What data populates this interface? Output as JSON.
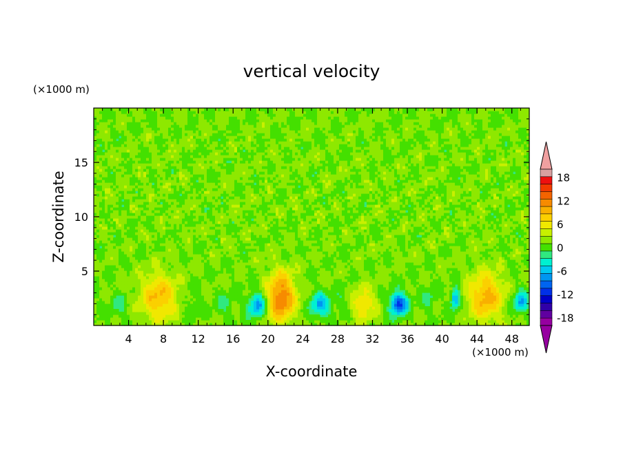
{
  "chart_data": {
    "type": "heatmap",
    "title": "vertical velocity",
    "xlabel": "X-coordinate",
    "ylabel": "Z-coordinate",
    "x_unit_label": "(×1000 m)",
    "y_unit_label": "(×1000 m)",
    "xlim": [
      0,
      50
    ],
    "ylim": [
      0,
      20
    ],
    "x_ticks": [
      "4",
      "8",
      "12",
      "16",
      "20",
      "24",
      "28",
      "32",
      "36",
      "40",
      "44",
      "48"
    ],
    "y_ticks": [
      "5",
      "10",
      "15"
    ],
    "grid": false,
    "legend": "colorbar-right",
    "colorbar": {
      "min": -20,
      "max": 20,
      "step": 2,
      "tick_labels": [
        "-18",
        "-12",
        "-6",
        "0",
        "6",
        "12",
        "18"
      ],
      "extend": "both",
      "colors": [
        "#d8a0a0",
        "#ee1010",
        "#f23a00",
        "#f46400",
        "#f78b00",
        "#f9b000",
        "#fbd000",
        "#f0e800",
        "#c8f000",
        "#8ee800",
        "#44e000",
        "#30e880",
        "#00f0d0",
        "#00c8f0",
        "#0096f0",
        "#0064f0",
        "#0030e8",
        "#0000c8",
        "#3000a8",
        "#6000a0",
        "#9600a0"
      ],
      "lower_extend_color": "#9600a0",
      "upper_extend_color": "#f0a0a0"
    },
    "features": [
      {
        "x": 7.5,
        "z": 2.6,
        "peak": 8,
        "rx": 2.2,
        "rz": 2.2
      },
      {
        "x": 21.5,
        "z": 2.6,
        "peak": 12,
        "rx": 1.6,
        "rz": 2.3
      },
      {
        "x": 31.0,
        "z": 2.0,
        "peak": 6,
        "rx": 1.4,
        "rz": 1.6
      },
      {
        "x": 45.0,
        "z": 2.7,
        "peak": 9,
        "rx": 2.0,
        "rz": 2.2
      },
      {
        "x": 14.8,
        "z": 8.0,
        "peak": 3,
        "rx": 0.3,
        "rz": 0.5
      },
      {
        "x": 3.0,
        "z": 1.8,
        "peak": -3,
        "rx": 1.0,
        "rz": 1.1
      },
      {
        "x": 11.0,
        "z": 2.0,
        "peak": -2,
        "rx": 1.0,
        "rz": 1.3
      },
      {
        "x": 15.0,
        "z": 2.0,
        "peak": -3,
        "rx": 0.8,
        "rz": 1.0
      },
      {
        "x": 18.8,
        "z": 1.9,
        "peak": -9,
        "rx": 1.1,
        "rz": 1.1
      },
      {
        "x": 26.0,
        "z": 1.9,
        "peak": -8,
        "rx": 1.1,
        "rz": 1.1
      },
      {
        "x": 28.5,
        "z": 2.2,
        "peak": -2,
        "rx": 0.8,
        "rz": 1.0
      },
      {
        "x": 35.0,
        "z": 2.0,
        "peak": -13,
        "rx": 1.0,
        "rz": 1.0
      },
      {
        "x": 38.5,
        "z": 2.5,
        "peak": -3,
        "rx": 0.8,
        "rz": 1.0
      },
      {
        "x": 41.5,
        "z": 2.5,
        "peak": -9,
        "rx": 0.5,
        "rz": 1.0
      },
      {
        "x": 49.0,
        "z": 2.2,
        "peak": -8,
        "rx": 0.9,
        "rz": 1.0
      }
    ]
  }
}
